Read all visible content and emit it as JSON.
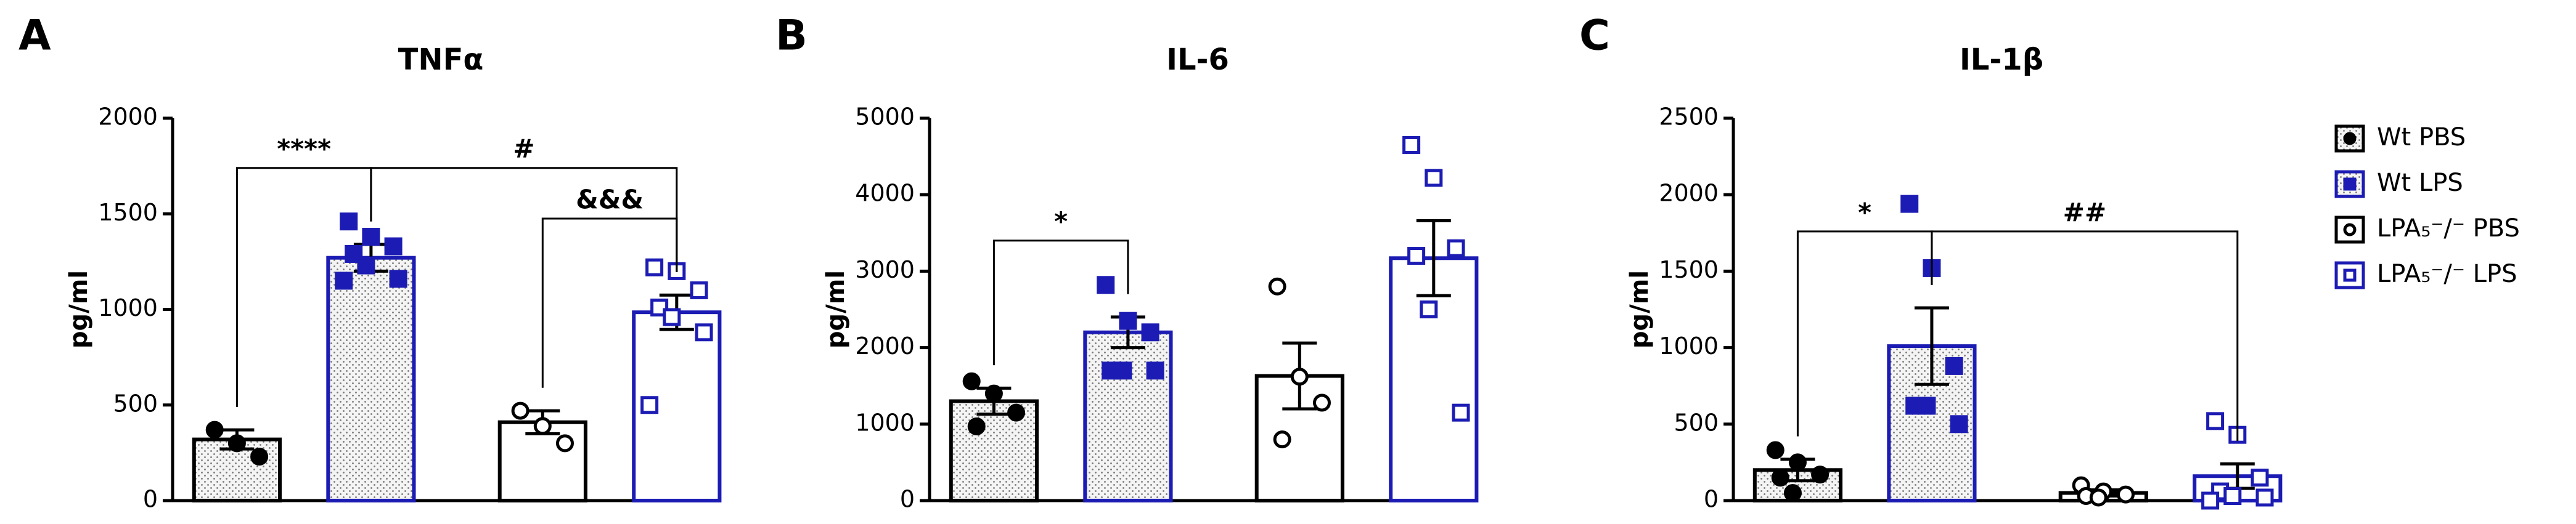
{
  "legend": [
    {
      "name": "Wt PBS",
      "color": "#000000",
      "marker": "circle",
      "filled": true,
      "pattern": "dots"
    },
    {
      "name": "Wt LPS",
      "color": "#1c1cb4",
      "marker": "square",
      "filled": true,
      "pattern": "dots"
    },
    {
      "name": "LPA₅⁻/⁻ PBS",
      "color": "#000000",
      "marker": "circle",
      "filled": false,
      "pattern": "none"
    },
    {
      "name": "LPA₅⁻/⁻ LPS",
      "color": "#1c1cb4",
      "marker": "square",
      "filled": false,
      "pattern": "none"
    }
  ],
  "chart_data": [
    {
      "type": "bar",
      "panel": "A",
      "title": "TNFα",
      "ylabel": "pg/ml",
      "ylim": [
        0,
        2000
      ],
      "yticks": [
        0,
        500,
        1000,
        1500,
        2000
      ],
      "values": [
        320,
        1270,
        410,
        985
      ],
      "errors": [
        50,
        70,
        60,
        90
      ],
      "points": [
        [
          370,
          300,
          230
        ],
        [
          1460,
          1380,
          1330,
          1290,
          1230,
          1160,
          1150
        ],
        [
          470,
          390,
          300
        ],
        [
          1220,
          1200,
          1100,
          1010,
          960,
          880,
          500
        ]
      ],
      "annotations": [
        {
          "text": "****",
          "from": 0,
          "to": 1
        },
        {
          "text": "#",
          "from": 1,
          "to": 3
        },
        {
          "text": "&&&",
          "from": 2,
          "to": 3
        }
      ]
    },
    {
      "type": "bar",
      "panel": "B",
      "title": "IL-6",
      "ylabel": "pg/ml",
      "ylim": [
        0,
        5000
      ],
      "yticks": [
        0,
        1000,
        2000,
        3000,
        4000,
        5000
      ],
      "values": [
        1300,
        2200,
        1630,
        3170
      ],
      "errors": [
        170,
        200,
        430,
        490
      ],
      "points": [
        [
          1560,
          1400,
          1150,
          970
        ],
        [
          2820,
          2350,
          2200,
          1700,
          1700,
          1700
        ],
        [
          2800,
          1620,
          1280,
          800
        ],
        [
          4650,
          4220,
          3300,
          3200,
          2500,
          1150
        ]
      ],
      "annotations": [
        {
          "text": "*",
          "from": 0,
          "to": 1
        }
      ]
    },
    {
      "type": "bar",
      "panel": "C",
      "title": "IL-1β",
      "ylabel": "pg/ml",
      "ylim": [
        0,
        2500
      ],
      "yticks": [
        0,
        500,
        1000,
        1500,
        2000,
        2500
      ],
      "values": [
        200,
        1010,
        50,
        160
      ],
      "errors": [
        70,
        250,
        20,
        80
      ],
      "points": [
        [
          330,
          250,
          170,
          150,
          50
        ],
        [
          1940,
          1520,
          880,
          620,
          620,
          500
        ],
        [
          100,
          60,
          40,
          30,
          20
        ],
        [
          520,
          430,
          150,
          60,
          30,
          20,
          0
        ]
      ],
      "annotations": [
        {
          "text": "*",
          "from": 0,
          "to": 1
        },
        {
          "text": "##",
          "from": 1,
          "to": 3
        }
      ]
    }
  ]
}
